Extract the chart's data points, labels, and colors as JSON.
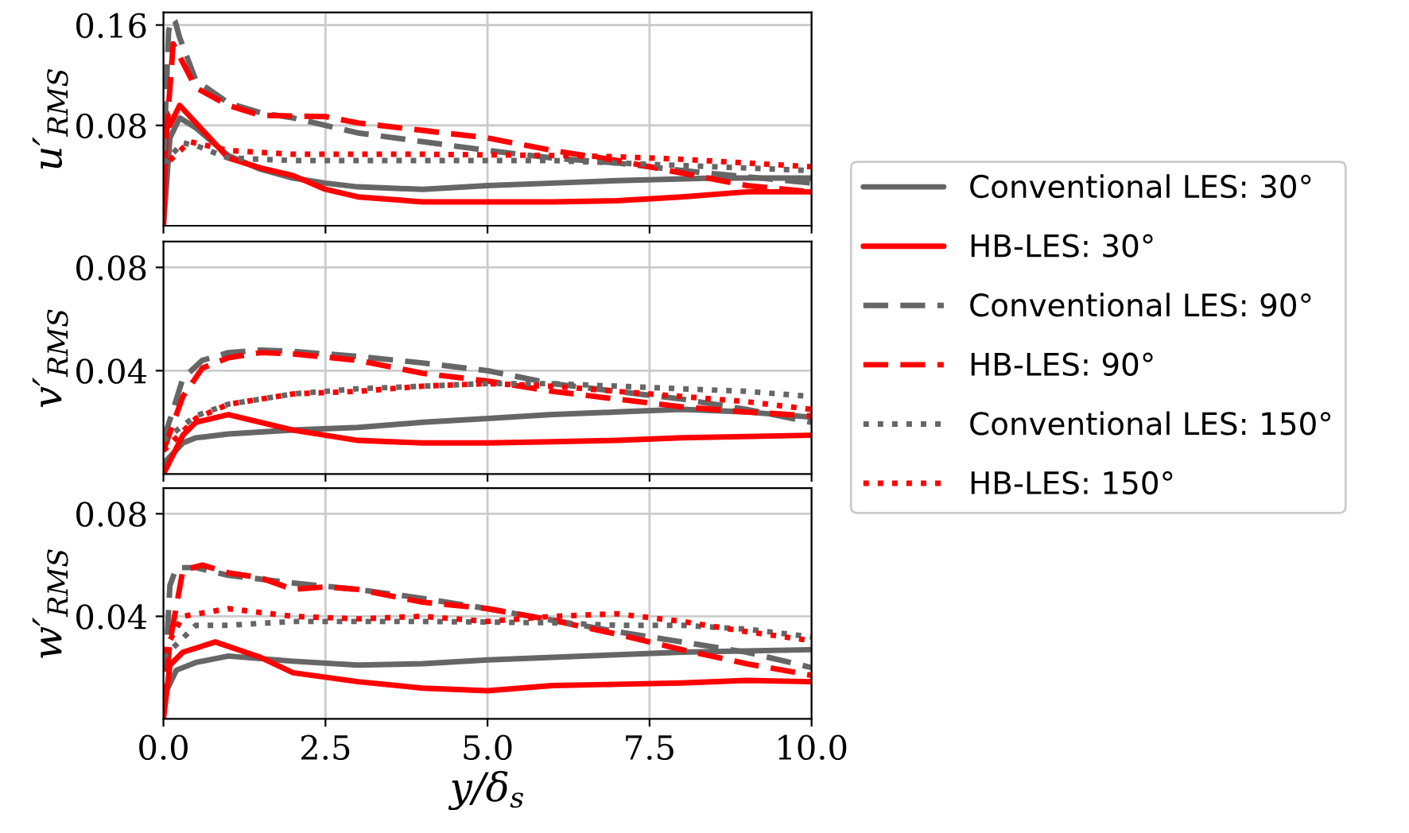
{
  "chart_data": [
    {
      "type": "line",
      "ylabel": "u′$_{RMS}$",
      "xlim": [
        0,
        10
      ],
      "ylim": [
        0,
        0.17
      ],
      "xticks": [
        {
          "value": 0,
          "label": null
        },
        {
          "value": 2.5,
          "label": null
        },
        {
          "value": 5,
          "label": null
        },
        {
          "value": 7.5,
          "label": null
        },
        {
          "value": 10,
          "label": null
        }
      ],
      "yticks": [
        0.08,
        0.16
      ],
      "tick_labels": "y",
      "grid": true,
      "legend": "right",
      "series": [
        {
          "name": "Conventional LES: 30°",
          "color": "#666666",
          "line_style": "solid",
          "x": [
            0,
            0.1,
            0.25,
            0.5,
            1,
            1.5,
            2,
            2.5,
            3,
            4,
            5,
            6,
            7,
            8.5,
            10
          ],
          "values": [
            0,
            0.07,
            0.086,
            0.078,
            0.056,
            0.045,
            0.038,
            0.034,
            0.031,
            0.029,
            0.032,
            0.034,
            0.036,
            0.038,
            0.038
          ]
        },
        {
          "name": "HB-LES: 30°",
          "color": "#ff0000",
          "line_style": "solid",
          "x": [
            0,
            0.05,
            0.1,
            0.25,
            0.5,
            1,
            1.5,
            2,
            2.5,
            3,
            4,
            5,
            6,
            7,
            8,
            9,
            10
          ],
          "values": [
            0,
            0.09,
            0.08,
            0.096,
            0.082,
            0.054,
            0.046,
            0.04,
            0.029,
            0.023,
            0.019,
            0.019,
            0.019,
            0.02,
            0.023,
            0.027,
            0.027
          ]
        },
        {
          "name": "Conventional LES: 90°",
          "color": "#666666",
          "line_style": "dashed",
          "x": [
            0,
            0.08,
            0.12,
            0.15,
            0.18,
            0.25,
            0.5,
            1,
            1.5,
            2,
            3,
            4,
            5,
            6,
            7,
            8,
            9,
            10
          ],
          "values": [
            0.05,
            0.155,
            0.163,
            0.165,
            0.163,
            0.15,
            0.116,
            0.098,
            0.09,
            0.086,
            0.074,
            0.067,
            0.06,
            0.054,
            0.05,
            0.044,
            0.039,
            0.034
          ]
        },
        {
          "name": "HB-LES: 90°",
          "color": "#ff0000",
          "line_style": "dashed",
          "x": [
            0,
            0.15,
            0.5,
            1,
            1.5,
            2.5,
            3,
            4,
            5,
            6,
            7,
            8,
            9,
            10
          ],
          "values": [
            0.04,
            0.145,
            0.11,
            0.096,
            0.088,
            0.087,
            0.082,
            0.076,
            0.07,
            0.06,
            0.052,
            0.042,
            0.032,
            0.027
          ]
        },
        {
          "name": "Conventional LES: 150°",
          "color": "#666666",
          "line_style": "dotted",
          "x": [
            0,
            0.3,
            0.5,
            1,
            2,
            4,
            6,
            8,
            10
          ],
          "values": [
            0.05,
            0.066,
            0.064,
            0.054,
            0.052,
            0.052,
            0.052,
            0.048,
            0.044
          ]
        },
        {
          "name": "HB-LES: 150°",
          "color": "#ff0000",
          "line_style": "dotted",
          "x": [
            0.1,
            0.4,
            1,
            2,
            4,
            6,
            7,
            8,
            10
          ],
          "values": [
            0.052,
            0.067,
            0.06,
            0.057,
            0.057,
            0.056,
            0.055,
            0.053,
            0.047
          ]
        }
      ]
    },
    {
      "type": "line",
      "ylabel": "v′$_{RMS}$",
      "xlim": [
        0,
        10
      ],
      "ylim": [
        0,
        0.09
      ],
      "xticks": [
        {
          "value": 0,
          "label": null
        },
        {
          "value": 2.5,
          "label": null
        },
        {
          "value": 5,
          "label": null
        },
        {
          "value": 7.5,
          "label": null
        },
        {
          "value": 10,
          "label": null
        }
      ],
      "yticks": [
        0.04,
        0.08
      ],
      "tick_labels": "y",
      "grid": true,
      "series": [
        {
          "color": "#666666",
          "line_style": "solid",
          "x": [
            0,
            0.3,
            0.5,
            1,
            2,
            3,
            4,
            5,
            6,
            7,
            8,
            9,
            10
          ],
          "values": [
            0.004,
            0.012,
            0.014,
            0.0155,
            0.017,
            0.018,
            0.02,
            0.0215,
            0.023,
            0.024,
            0.025,
            0.024,
            0.022
          ]
        },
        {
          "color": "#ff0000",
          "line_style": "solid",
          "x": [
            0,
            0.3,
            0.5,
            1,
            1.5,
            2,
            3,
            4,
            5,
            6,
            7,
            8,
            10
          ],
          "values": [
            0,
            0.015,
            0.02,
            0.023,
            0.02,
            0.017,
            0.013,
            0.012,
            0.012,
            0.0125,
            0.013,
            0.014,
            0.015
          ]
        },
        {
          "color": "#666666",
          "line_style": "dashed",
          "x": [
            0,
            0.3,
            0.6,
            1,
            1.5,
            2,
            3,
            4,
            5,
            6,
            7,
            8,
            9,
            10
          ],
          "values": [
            0.013,
            0.037,
            0.044,
            0.047,
            0.048,
            0.0475,
            0.0455,
            0.043,
            0.04,
            0.035,
            0.032,
            0.029,
            0.025,
            0.02
          ]
        },
        {
          "color": "#ff0000",
          "line_style": "dashed",
          "x": [
            0,
            0.3,
            0.6,
            1,
            1.5,
            2,
            3,
            4,
            5,
            6,
            7,
            8,
            9,
            10
          ],
          "values": [
            0.009,
            0.03,
            0.041,
            0.045,
            0.047,
            0.0465,
            0.044,
            0.039,
            0.036,
            0.032,
            0.029,
            0.026,
            0.024,
            0.0225
          ]
        },
        {
          "color": "#666666",
          "line_style": "dotted",
          "x": [
            0,
            0.5,
            1,
            2,
            3,
            4,
            5,
            6,
            7,
            8,
            9,
            10
          ],
          "values": [
            0.013,
            0.0225,
            0.027,
            0.031,
            0.033,
            0.034,
            0.035,
            0.035,
            0.034,
            0.033,
            0.032,
            0.03
          ]
        },
        {
          "color": "#ff0000",
          "line_style": "dotted",
          "x": [
            0,
            0.5,
            1,
            2,
            3,
            4,
            5,
            6,
            7,
            8,
            9,
            10
          ],
          "values": [
            0.009,
            0.0215,
            0.027,
            0.031,
            0.032,
            0.034,
            0.035,
            0.034,
            0.032,
            0.03,
            0.028,
            0.025
          ]
        }
      ]
    },
    {
      "type": "line",
      "xlabel": "y/δ$_{s}$",
      "ylabel": "w′$_{RMS}$",
      "xlim": [
        0,
        10
      ],
      "ylim": [
        0,
        0.09
      ],
      "xticks": [
        {
          "value": 0,
          "label": "0.0"
        },
        {
          "value": 2.5,
          "label": "2.5"
        },
        {
          "value": 5,
          "label": "5.0"
        },
        {
          "value": 7.5,
          "label": "7.5"
        },
        {
          "value": 10,
          "label": "10.0"
        }
      ],
      "yticks": [
        0.04,
        0.08
      ],
      "grid": true,
      "series": [
        {
          "color": "#666666",
          "line_style": "solid",
          "x": [
            0,
            0.2,
            0.5,
            1,
            2,
            3,
            4,
            5,
            6,
            7,
            8,
            10
          ],
          "values": [
            0.0086,
            0.019,
            0.022,
            0.0245,
            0.0225,
            0.021,
            0.0215,
            0.023,
            0.024,
            0.025,
            0.026,
            0.027
          ]
        },
        {
          "color": "#ff0000",
          "line_style": "solid",
          "x": [
            0,
            0.1,
            0.3,
            0.8,
            1.5,
            2,
            3,
            4,
            5,
            6,
            7,
            8,
            9,
            10
          ],
          "values": [
            0,
            0.021,
            0.026,
            0.03,
            0.024,
            0.018,
            0.0145,
            0.012,
            0.011,
            0.013,
            0.0135,
            0.014,
            0.015,
            0.0145
          ]
        },
        {
          "color": "#666666",
          "line_style": "dashed",
          "x": [
            0,
            0.1,
            0.2,
            0.5,
            1,
            2,
            3,
            4,
            5,
            6,
            7,
            8,
            9,
            10
          ],
          "values": [
            0.004,
            0.052,
            0.059,
            0.059,
            0.056,
            0.053,
            0.0505,
            0.047,
            0.043,
            0.0385,
            0.034,
            0.03,
            0.026,
            0.02
          ]
        },
        {
          "color": "#ff0000",
          "line_style": "dashed",
          "x": [
            0,
            0.1,
            0.3,
            0.6,
            1,
            1.5,
            2,
            2.5,
            3,
            4,
            5,
            6,
            7,
            8,
            9,
            10
          ],
          "values": [
            0.004,
            0.03,
            0.058,
            0.06,
            0.057,
            0.055,
            0.0505,
            0.0515,
            0.0505,
            0.0455,
            0.043,
            0.0385,
            0.033,
            0.027,
            0.0215,
            0.017
          ]
        },
        {
          "color": "#666666",
          "line_style": "dotted",
          "x": [
            0,
            0.5,
            1,
            2,
            4,
            6,
            7,
            8,
            9,
            10
          ],
          "values": [
            0.024,
            0.0365,
            0.0365,
            0.038,
            0.038,
            0.0375,
            0.0365,
            0.0365,
            0.035,
            0.032
          ]
        },
        {
          "color": "#ff0000",
          "line_style": "dotted",
          "x": [
            0,
            0.3,
            1,
            2,
            3,
            4,
            5,
            6,
            7,
            8,
            9,
            10
          ],
          "values": [
            0.026,
            0.04,
            0.043,
            0.04,
            0.039,
            0.04,
            0.038,
            0.04,
            0.041,
            0.038,
            0.034,
            0.0305
          ]
        }
      ]
    }
  ]
}
